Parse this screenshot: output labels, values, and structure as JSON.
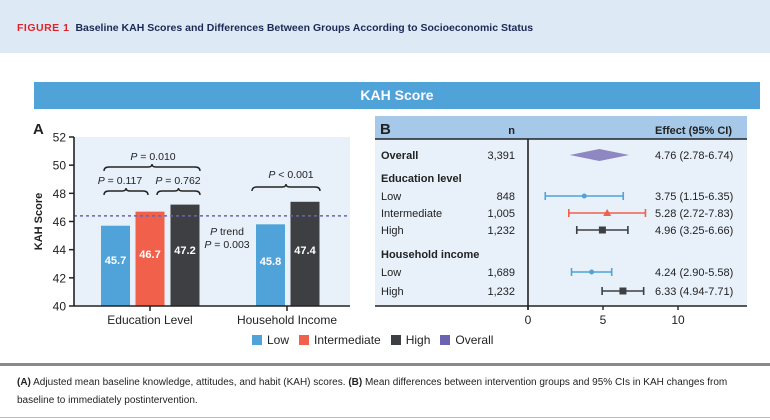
{
  "figure": {
    "label": "FIGURE 1",
    "title": "Baseline KAH Scores and Differences Between Groups According to Socioeconomic Status",
    "banner": "KAH Score"
  },
  "colors": {
    "low": "#4fa3d8",
    "intermediate": "#f0604a",
    "high": "#3d3f42",
    "overall": "#6b63b0",
    "overall_diamond": "#8f87c2",
    "panel_bg": "#e8f1fa",
    "header_bg": "#a6c9ea"
  },
  "legend": [
    {
      "label": "Low",
      "key": "low"
    },
    {
      "label": "Intermediate",
      "key": "intermediate"
    },
    {
      "label": "High",
      "key": "high"
    },
    {
      "label": "Overall",
      "key": "overall"
    }
  ],
  "caption": {
    "a_label": "(A)",
    "a_text": " Adjusted mean baseline knowledge, attitudes, and habit (KAH) scores. ",
    "b_label": "(B)",
    "b_text": " Mean differences between intervention groups and 95% CIs in KAH changes from baseline to immediately postintervention."
  },
  "chart_data": [
    {
      "type": "bar",
      "panel": "A",
      "ylabel": "KAH Score",
      "xlabel": "",
      "ylim": [
        40,
        52
      ],
      "yticks": [
        40,
        42,
        44,
        46,
        48,
        50,
        52
      ],
      "overall_reference": 46.4,
      "categories": [
        "Education Level",
        "Household Income"
      ],
      "groups": [
        {
          "category": "Education Level",
          "bars": [
            {
              "name": "Low",
              "key": "low",
              "value": 45.7,
              "label": "45.7"
            },
            {
              "name": "Intermediate",
              "key": "intermediate",
              "value": 46.7,
              "label": "46.7"
            },
            {
              "name": "High",
              "key": "high",
              "value": 47.2,
              "label": "47.2"
            }
          ]
        },
        {
          "category": "Household Income",
          "bars": [
            {
              "name": "Low",
              "key": "low",
              "value": 45.8,
              "label": "45.8"
            },
            {
              "name": "High",
              "key": "high",
              "value": 47.4,
              "label": "47.4"
            }
          ]
        }
      ],
      "annotations": {
        "edu_overall_p": "P = 0.010",
        "edu_low_int_p": "P = 0.117",
        "edu_int_high_p": "P = 0.762",
        "trend_line1": "P trend",
        "trend_line2": "P = 0.003",
        "income_p": "P < 0.001"
      }
    },
    {
      "type": "forest",
      "panel": "B",
      "header": {
        "n": "n",
        "effect": "Effect (95% CI)"
      },
      "xlim": [
        0,
        10
      ],
      "xticks": [
        0,
        5,
        10
      ],
      "rows": [
        {
          "kind": "row",
          "label": "Overall",
          "bold": true,
          "n": "3,391",
          "est": 4.76,
          "lo": 2.78,
          "hi": 6.74,
          "text": "4.76 (2.78-6.74)",
          "key": "overall",
          "marker": "diamond"
        },
        {
          "kind": "heading",
          "label": "Education level"
        },
        {
          "kind": "row",
          "label": "Low",
          "n": "848",
          "est": 3.75,
          "lo": 1.15,
          "hi": 6.35,
          "text": "3.75 (1.15-6.35)",
          "key": "low",
          "marker": "dot"
        },
        {
          "kind": "row",
          "label": "Intermediate",
          "n": "1,005",
          "est": 5.28,
          "lo": 2.72,
          "hi": 7.83,
          "text": "5.28 (2.72-7.83)",
          "key": "intermediate",
          "marker": "triangle"
        },
        {
          "kind": "row",
          "label": "High",
          "n": "1,232",
          "est": 4.96,
          "lo": 3.25,
          "hi": 6.66,
          "text": "4.96 (3.25-6.66)",
          "key": "high",
          "marker": "square"
        },
        {
          "kind": "heading",
          "label": "Household income"
        },
        {
          "kind": "row",
          "label": "Low",
          "n": "1,689",
          "est": 4.24,
          "lo": 2.9,
          "hi": 5.58,
          "text": "4.24 (2.90-5.58)",
          "key": "low",
          "marker": "dot"
        },
        {
          "kind": "row",
          "label": "High",
          "n": "1,232",
          "est": 6.33,
          "lo": 4.94,
          "hi": 7.71,
          "text": "6.33 (4.94-7.71)",
          "key": "high",
          "marker": "square"
        }
      ]
    }
  ]
}
